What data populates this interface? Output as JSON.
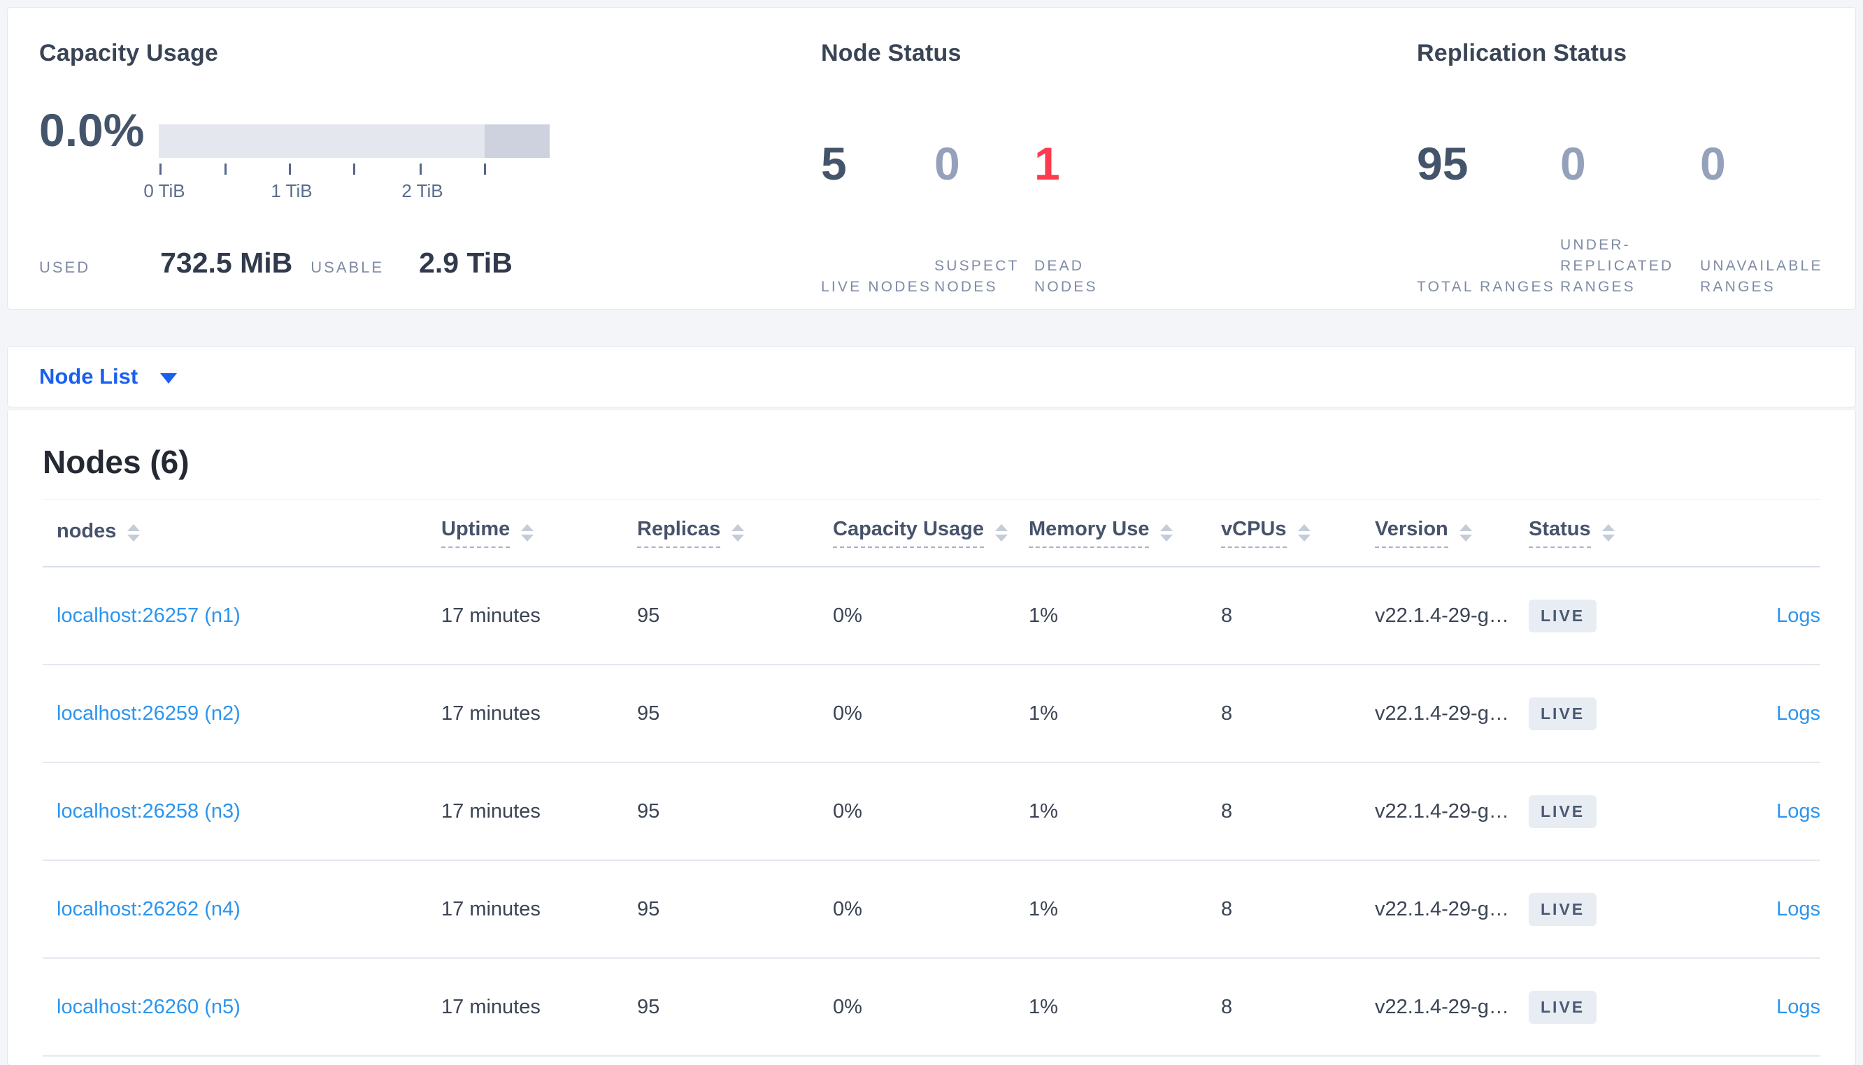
{
  "summary": {
    "capacity": {
      "title": "Capacity Usage",
      "percent": "0.0%",
      "ticks": [
        "0 TiB",
        "1 TiB",
        "2 TiB"
      ],
      "used_label": "USED",
      "used_value": "732.5 MiB",
      "usable_label": "USABLE",
      "usable_value": "2.9 TiB"
    },
    "node_status": {
      "title": "Node Status",
      "stats": [
        {
          "value": "5",
          "label": "LIVE NODES",
          "tone": "dark"
        },
        {
          "value": "0",
          "label": "SUSPECT NODES",
          "tone": "muted"
        },
        {
          "value": "1",
          "label": "DEAD NODES",
          "tone": "danger"
        }
      ]
    },
    "replication": {
      "title": "Replication Status",
      "stats": [
        {
          "value": "95",
          "label": "TOTAL RANGES",
          "tone": "dark"
        },
        {
          "value": "0",
          "label": "UNDER-REPLICATED RANGES",
          "tone": "muted"
        },
        {
          "value": "0",
          "label": "UNAVAILABLE RANGES",
          "tone": "muted"
        }
      ]
    }
  },
  "view_selector": {
    "label": "Node List"
  },
  "nodes_section": {
    "heading": "Nodes (6)",
    "columns": [
      {
        "key": "address",
        "label": "nodes",
        "dashed": false
      },
      {
        "key": "uptime",
        "label": "Uptime",
        "dashed": true
      },
      {
        "key": "replicas",
        "label": "Replicas",
        "dashed": true
      },
      {
        "key": "capacity_usage",
        "label": "Capacity Usage",
        "dashed": true
      },
      {
        "key": "memory_use",
        "label": "Memory Use",
        "dashed": true
      },
      {
        "key": "vcpus",
        "label": "vCPUs",
        "dashed": true
      },
      {
        "key": "version",
        "label": "Version",
        "dashed": true
      },
      {
        "key": "status",
        "label": "Status",
        "dashed": true
      }
    ],
    "rows": [
      {
        "address": "localhost:26257 (n1)",
        "uptime": "17 minutes",
        "replicas": "95",
        "capacity_usage": "0%",
        "memory_use": "1%",
        "vcpus": "8",
        "version": "v22.1.4-29-g…",
        "status": "LIVE",
        "logs": "Logs"
      },
      {
        "address": "localhost:26259 (n2)",
        "uptime": "17 minutes",
        "replicas": "95",
        "capacity_usage": "0%",
        "memory_use": "1%",
        "vcpus": "8",
        "version": "v22.1.4-29-g…",
        "status": "LIVE",
        "logs": "Logs"
      },
      {
        "address": "localhost:26258 (n3)",
        "uptime": "17 minutes",
        "replicas": "95",
        "capacity_usage": "0%",
        "memory_use": "1%",
        "vcpus": "8",
        "version": "v22.1.4-29-g…",
        "status": "LIVE",
        "logs": "Logs"
      },
      {
        "address": "localhost:26262 (n4)",
        "uptime": "17 minutes",
        "replicas": "95",
        "capacity_usage": "0%",
        "memory_use": "1%",
        "vcpus": "8",
        "version": "v22.1.4-29-g…",
        "status": "LIVE",
        "logs": "Logs"
      },
      {
        "address": "localhost:26260 (n5)",
        "uptime": "17 minutes",
        "replicas": "95",
        "capacity_usage": "0%",
        "memory_use": "1%",
        "vcpus": "8",
        "version": "v22.1.4-29-g…",
        "status": "LIVE",
        "logs": "Logs"
      }
    ]
  },
  "colors": {
    "page_background": "#f3f5f9",
    "stat_dark": "#44546a",
    "stat_muted": "#95a0ba",
    "stat_danger": "#fc3b4e",
    "link_blue": "#2b95ef",
    "selector_blue": "#1a5ff0",
    "badge_background": "#e8ecf3",
    "bar_light": "#e4e7ee",
    "bar_dark": "#cdd2de"
  },
  "chart_data": {
    "type": "bar",
    "title": "Capacity Usage",
    "categories": [
      "used",
      "usable"
    ],
    "values_text": [
      "732.5 MiB",
      "2.9 TiB"
    ],
    "percent_used": 0.0,
    "axis_ticks_tib": [
      0,
      0.5,
      1,
      1.5,
      2,
      2.5
    ],
    "axis_tick_labels": [
      "0 TiB",
      "1 TiB",
      "2 TiB"
    ],
    "xlim_tib": [
      0,
      3
    ]
  }
}
